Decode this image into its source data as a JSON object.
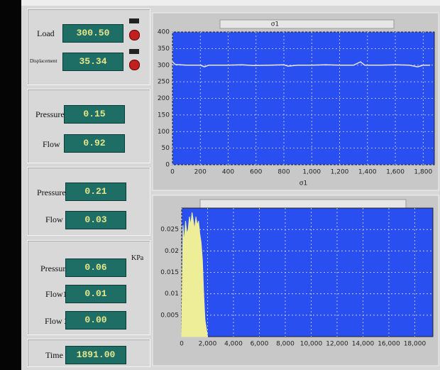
{
  "panel": {
    "load": {
      "label": "Load",
      "value": "300.50"
    },
    "displacement": {
      "label": "Displacement",
      "value": "35.34"
    },
    "group1": {
      "pressure_label": "Pressure",
      "pressure": "0.15",
      "flow_label": "Flow",
      "flow": "0.92"
    },
    "group2": {
      "pressure_label": "Pressure",
      "pressure": "0.21",
      "flow_label": "Flow",
      "flow": "0.03"
    },
    "group3": {
      "pressure_label": "Pressure",
      "pressure": "0.06",
      "unit": "KPa",
      "flow1_label": "Flow1",
      "flow1": "0.01",
      "flow2_label": "Flow 2",
      "flow2": "0.00"
    },
    "time": {
      "label": "Time",
      "value": "1891.00"
    }
  },
  "chart_data": [
    {
      "type": "line",
      "title": "σ1",
      "x_label": "σ1",
      "color": "#e8e8e8",
      "grid": true,
      "x": [
        0,
        20,
        100,
        200,
        230,
        260,
        400,
        500,
        580,
        700,
        800,
        830,
        900,
        1000,
        1100,
        1200,
        1300,
        1350,
        1380,
        1500,
        1600,
        1700,
        1760,
        1800,
        1850
      ],
      "values": [
        310,
        302,
        300,
        300,
        295,
        300,
        300,
        301,
        299,
        300,
        301,
        297,
        300,
        300,
        301,
        300,
        300,
        310,
        300,
        300,
        301,
        300,
        295,
        300,
        300
      ],
      "xlim": [
        0,
        1880
      ],
      "ylim": [
        0,
        400
      ],
      "xticks": [
        0,
        200,
        400,
        600,
        800,
        {
          "value": 1000,
          "label": "1,000"
        },
        {
          "value": 1200,
          "label": "1,200"
        },
        {
          "value": 1400,
          "label": "1,400"
        },
        {
          "value": 1600,
          "label": "1,600"
        },
        {
          "value": 1800,
          "label": "1,800"
        }
      ],
      "yticks": [
        0,
        50,
        100,
        150,
        200,
        250,
        300,
        350,
        400
      ]
    },
    {
      "type": "area",
      "color": "#eeee99",
      "grid": true,
      "x": [
        0,
        100,
        200,
        300,
        400,
        500,
        600,
        700,
        800,
        900,
        1000,
        1100,
        1200,
        1300,
        1400,
        1500,
        1600,
        1700,
        1800,
        1900,
        2000
      ],
      "values": [
        0,
        0.026,
        0.022,
        0.027,
        0.024,
        0.025,
        0.028,
        0.026,
        0.029,
        0.027,
        0.025,
        0.028,
        0.026,
        0.027,
        0.024,
        0.022,
        0.018,
        0.01,
        0.004,
        0.002,
        0
      ],
      "xlim": [
        0,
        19400
      ],
      "ylim": [
        0,
        0.03
      ],
      "xticks": [
        0,
        {
          "value": 2000,
          "label": "2,000"
        },
        {
          "value": 4000,
          "label": "4,000"
        },
        {
          "value": 6000,
          "label": "6,000"
        },
        {
          "value": 8000,
          "label": "8,000"
        },
        {
          "value": 10000,
          "label": "10,000"
        },
        {
          "value": 12000,
          "label": "12,000"
        },
        {
          "value": 14000,
          "label": "14,000"
        },
        {
          "value": 16000,
          "label": "16,000"
        },
        {
          "value": 18000,
          "label": "18,000"
        }
      ],
      "yticks": [
        0.005,
        0.01,
        0.015,
        0.02,
        0.025
      ]
    }
  ]
}
